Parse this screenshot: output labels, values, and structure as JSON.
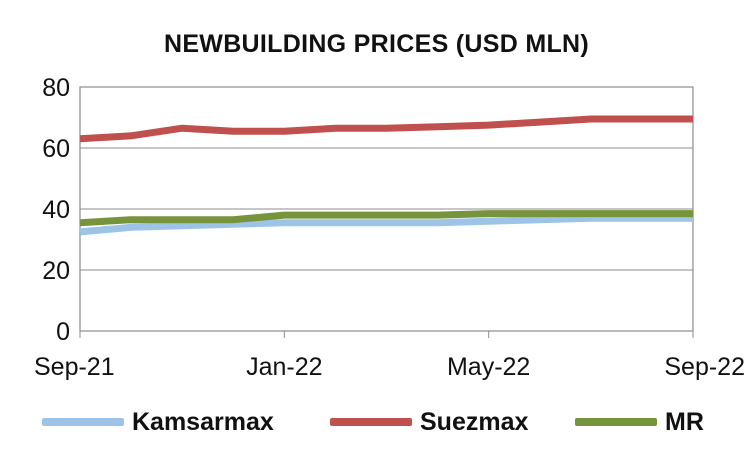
{
  "chart_data": {
    "type": "line",
    "title": "NEWBUILDING PRICES (USD MLN)",
    "xlabel": "",
    "ylabel": "",
    "ylim": [
      0,
      80
    ],
    "yticks": [
      0,
      20,
      40,
      60,
      80
    ],
    "xticks": [
      "Sep-21",
      "Jan-22",
      "May-22",
      "Sep-22"
    ],
    "categories": [
      "Sep-21",
      "Oct-21",
      "Nov-21",
      "Dec-21",
      "Jan-22",
      "Feb-22",
      "Mar-22",
      "Apr-22",
      "May-22",
      "Jun-22",
      "Jul-22",
      "Aug-22",
      "Sep-22"
    ],
    "series": [
      {
        "name": "Kamsarmax",
        "color": "#9dc3e6",
        "values": [
          32.5,
          34,
          34.5,
          35,
          35.5,
          35.5,
          35.5,
          35.5,
          36,
          36.5,
          37,
          37,
          37
        ]
      },
      {
        "name": "Suezmax",
        "color": "#c0504d",
        "values": [
          63,
          64,
          66.5,
          65.5,
          65.5,
          66.5,
          66.5,
          67,
          67.5,
          68.5,
          69.5,
          69.5,
          69.5
        ]
      },
      {
        "name": "MR",
        "color": "#77933c",
        "values": [
          35.5,
          36.5,
          36.5,
          36.5,
          38,
          38,
          38,
          38,
          38.5,
          38.5,
          38.5,
          38.5,
          38.5
        ]
      }
    ],
    "grid": true,
    "legend": "bottom"
  }
}
